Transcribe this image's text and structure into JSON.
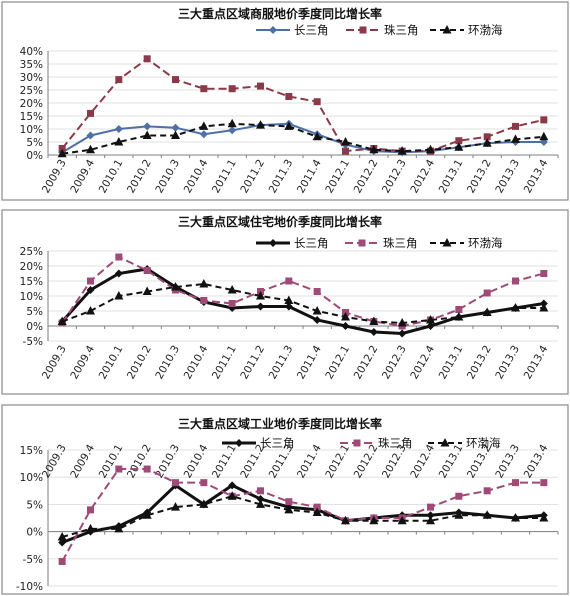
{
  "chart_data": [
    {
      "type": "line",
      "title": "三大重点区域商服地价季度同比增长率",
      "categories": [
        "2009.3",
        "2009.4",
        "2010.1",
        "2010.2",
        "2010.3",
        "2010.4",
        "2011.1",
        "2011.2",
        "2011.3",
        "2011.4",
        "2012.1",
        "2012.2",
        "2012.3",
        "2012.4",
        "2013.1",
        "2013.2",
        "2013.3",
        "2013.4"
      ],
      "yticks": [
        "0%",
        "5%",
        "10%",
        "15%",
        "20%",
        "25%",
        "30%",
        "35%",
        "40%"
      ],
      "ylim": [
        0,
        40
      ],
      "legend_position": "top-right",
      "grid": true,
      "series": [
        {
          "name": "长三角",
          "color": "#4f6fa8",
          "dash": "",
          "marker": "diamond",
          "values": [
            1,
            7.5,
            10,
            11,
            10.5,
            8,
            9.5,
            11.5,
            12,
            8,
            4,
            1.5,
            1,
            1.5,
            3,
            4.5,
            5,
            5
          ]
        },
        {
          "name": "珠三角",
          "color": "#8b3a4a",
          "dash": "8 4",
          "marker": "square",
          "values": [
            2.5,
            16,
            29,
            37,
            29,
            25.5,
            25.5,
            26.5,
            22.5,
            20.5,
            1.5,
            2.5,
            1.5,
            1.5,
            5.5,
            7,
            11,
            13.5
          ]
        },
        {
          "name": "环渤海",
          "color": "#111111",
          "dash": "6 4",
          "marker": "triangle",
          "values": [
            0.5,
            2,
            5,
            7.5,
            7.5,
            11,
            12,
            11.5,
            11,
            7,
            5,
            2,
            1.5,
            2,
            3,
            4.5,
            6,
            7
          ]
        }
      ]
    },
    {
      "type": "line",
      "title": "三大重点区域住宅地价季度同比增长率",
      "categories": [
        "2009.3",
        "2009.4",
        "2010.1",
        "2010.2",
        "2010.3",
        "2010.4",
        "2011.1",
        "2011.2",
        "2011.3",
        "2011.4",
        "2012.1",
        "2012.2",
        "2012.3",
        "2012.4",
        "2013.1",
        "2013.2",
        "2013.3",
        "2013.4"
      ],
      "yticks": [
        "-5%",
        "0%",
        "5%",
        "10%",
        "15%",
        "20%",
        "25%"
      ],
      "ylim": [
        -5,
        25
      ],
      "legend_position": "top-right",
      "grid": true,
      "series": [
        {
          "name": "长三角",
          "color": "#111111",
          "dash": "",
          "marker": "diamond",
          "values": [
            1.5,
            12,
            17.5,
            19,
            13,
            8,
            6,
            6.5,
            6.5,
            2,
            0,
            -2,
            -2.5,
            0,
            3,
            4.5,
            6,
            7.5
          ]
        },
        {
          "name": "珠三角",
          "color": "#a04a78",
          "dash": "8 4",
          "marker": "square",
          "values": [
            1,
            15,
            23,
            18.5,
            12,
            8.5,
            7.5,
            11.5,
            15,
            11.5,
            4.5,
            1.5,
            0,
            2,
            5.5,
            11,
            15,
            17.5
          ]
        },
        {
          "name": "环渤海",
          "color": "#111111",
          "dash": "6 4",
          "marker": "triangle",
          "values": [
            1.5,
            5,
            10,
            11.5,
            13,
            14,
            12,
            10,
            8.5,
            5,
            3,
            1.5,
            1,
            2,
            3,
            4.5,
            6,
            6
          ]
        }
      ]
    },
    {
      "type": "line",
      "title": "三大重点区域工业地价季度同比增长率",
      "categories": [
        "2009.3",
        "2009.4",
        "2010.1",
        "2010.2",
        "2010.3",
        "2010.4",
        "2011.1",
        "2011.2",
        "2011.3",
        "2011.4",
        "2012.1",
        "2012.2",
        "2012.3",
        "2012.4",
        "2013.1",
        "2013.2",
        "2013.3",
        "2013.4"
      ],
      "yticks": [
        "-10%",
        "-5%",
        "0%",
        "5%",
        "10%",
        "15%"
      ],
      "ylim": [
        -10,
        15
      ],
      "legend_position": "top-right",
      "grid": true,
      "series": [
        {
          "name": "长三角",
          "color": "#111111",
          "dash": "",
          "marker": "diamond",
          "values": [
            -2,
            0,
            1,
            3.5,
            8.5,
            5,
            8.5,
            6,
            4.5,
            4,
            2,
            2.5,
            3,
            3,
            3.5,
            3,
            2.5,
            3
          ]
        },
        {
          "name": "珠三角",
          "color": "#a04a78",
          "dash": "8 4",
          "marker": "square",
          "values": [
            -5.5,
            4,
            11.5,
            11.5,
            9,
            9,
            6.5,
            7.5,
            5.5,
            4.5,
            2,
            2.5,
            2.5,
            4.5,
            6.5,
            7.5,
            9,
            9
          ]
        },
        {
          "name": "环渤海",
          "color": "#111111",
          "dash": "6 4",
          "marker": "triangle",
          "values": [
            -1,
            0.5,
            0.5,
            3,
            4.5,
            5,
            6.5,
            5,
            4,
            3.5,
            2,
            2,
            2,
            2,
            3,
            3,
            2.5,
            2.5
          ]
        }
      ]
    }
  ]
}
